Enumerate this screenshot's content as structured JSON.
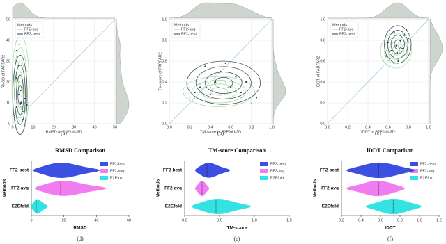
{
  "chart_data": [
    {
      "type": "scatter",
      "caption": "(a)",
      "x_label": "RMSD of E2Efold-3D",
      "y_label": "RMSD of FARFAR2",
      "legend_title": "Methods",
      "grid": true,
      "xlim": [
        0,
        50
      ],
      "ylim": [
        0,
        50
      ],
      "xticks": [
        0,
        10,
        20,
        30,
        40,
        50
      ],
      "yticks": [
        0,
        10,
        20,
        30,
        40,
        50
      ],
      "series": [
        {
          "name": "FF2-avg",
          "color": "#9fd89a",
          "x": [
            1,
            2,
            3,
            2,
            4,
            5,
            3,
            6,
            7,
            2,
            4,
            8
          ],
          "values": [
            5,
            12,
            20,
            30,
            8,
            15,
            38,
            10,
            25,
            40,
            3,
            18
          ]
        },
        {
          "name": "FF2-best",
          "color": "#2f3e50",
          "x": [
            1,
            2,
            3,
            4,
            5,
            2,
            6,
            3,
            7,
            4,
            5,
            2
          ],
          "values": [
            4,
            8,
            14,
            10,
            6,
            22,
            12,
            28,
            9,
            16,
            2,
            35
          ]
        }
      ]
    },
    {
      "type": "scatter",
      "caption": "(b)",
      "x_label": "TM-score of E2Efold-3D",
      "y_label": "TM-score of FARFAR2",
      "legend_title": "Methods",
      "grid": true,
      "xlim": [
        0,
        1
      ],
      "ylim": [
        0,
        1
      ],
      "xticks": [
        {
          "value": 0,
          "label": "0.0"
        },
        0.2,
        0.4,
        0.6,
        0.8,
        {
          "value": 1,
          "label": "1.0"
        }
      ],
      "yticks": [
        {
          "value": 0,
          "label": "0.0"
        },
        0.2,
        0.4,
        0.6,
        0.8,
        {
          "value": 1,
          "label": "1.0"
        }
      ],
      "series": [
        {
          "name": "FF2-avg",
          "color": "#9fd89a",
          "x": [
            0.2,
            0.3,
            0.35,
            0.4,
            0.5,
            0.55,
            0.6,
            0.7,
            0.8,
            0.45,
            0.3,
            0.65
          ],
          "values": [
            0.25,
            0.3,
            0.22,
            0.35,
            0.28,
            0.4,
            0.3,
            0.25,
            0.2,
            0.45,
            0.38,
            0.32
          ]
        },
        {
          "name": "FF2-best",
          "color": "#2f3e50",
          "x": [
            0.25,
            0.3,
            0.4,
            0.45,
            0.5,
            0.6,
            0.65,
            0.7,
            0.85,
            0.35,
            0.55,
            0.75
          ],
          "values": [
            0.3,
            0.35,
            0.28,
            0.4,
            0.5,
            0.35,
            0.45,
            0.3,
            0.25,
            0.55,
            0.58,
            0.4
          ]
        }
      ]
    },
    {
      "type": "scatter",
      "caption": "(c)",
      "x_label": "lDDT of E2Efold-3D",
      "y_label": "lDDT of FARFAR2",
      "legend_title": "Methods",
      "grid": true,
      "xlim": [
        0,
        1
      ],
      "ylim": [
        0,
        1
      ],
      "xticks": [
        {
          "value": 0,
          "label": "0.0"
        },
        0.2,
        0.4,
        0.6,
        0.8,
        {
          "value": 1,
          "label": "1.0"
        }
      ],
      "yticks": [
        {
          "value": 0,
          "label": "0.0"
        },
        0.2,
        0.4,
        0.6,
        0.8,
        {
          "value": 1,
          "label": "1.0"
        }
      ],
      "series": [
        {
          "name": "FF2-avg",
          "color": "#9fd89a",
          "x": [
            0.55,
            0.6,
            0.65,
            0.7,
            0.72,
            0.75,
            0.8,
            0.62,
            0.68,
            0.78,
            0.58,
            0.7
          ],
          "values": [
            0.6,
            0.65,
            0.7,
            0.75,
            0.8,
            0.72,
            0.78,
            0.55,
            0.85,
            0.68,
            0.7,
            0.62
          ]
        },
        {
          "name": "FF2-best",
          "color": "#2f3e50",
          "x": [
            0.58,
            0.63,
            0.68,
            0.72,
            0.76,
            0.8,
            0.66,
            0.7,
            0.74,
            0.6,
            0.78,
            0.69
          ],
          "values": [
            0.65,
            0.7,
            0.75,
            0.8,
            0.85,
            0.82,
            0.88,
            0.6,
            0.72,
            0.78,
            0.9,
            0.68
          ]
        }
      ]
    },
    {
      "type": "violin",
      "title": "RMSD Comparison",
      "caption": "(d)",
      "x_label": "RMSD",
      "y_label": "Methods",
      "xlim": [
        0,
        60
      ],
      "xticks": [
        0,
        20,
        40,
        60
      ],
      "categories": [
        "E2Efold",
        "FF2-avg",
        "FF2-best"
      ],
      "colors": [
        "#33e3e3",
        "#f07cf0",
        "#3b4fe0"
      ],
      "min": [
        0,
        2,
        1
      ],
      "median": [
        3,
        18,
        17
      ],
      "max": [
        10,
        46,
        42
      ]
    },
    {
      "type": "violin",
      "title": "TM-score Comparison",
      "caption": "(e)",
      "x_label": "TM-score",
      "y_label": "Methods",
      "xlim": [
        0,
        1.5
      ],
      "xticks": [
        {
          "value": 0,
          "label": "0.0"
        },
        0.5,
        {
          "value": 1,
          "label": "1.0"
        },
        1.5
      ],
      "categories": [
        "E2Efold",
        "FF2-avg",
        "FF2-best"
      ],
      "colors": [
        "#33e3e3",
        "#f07cf0",
        "#3b4fe0"
      ],
      "min": [
        0.1,
        0.15,
        0.15
      ],
      "median": [
        0.45,
        0.25,
        0.32
      ],
      "max": [
        0.95,
        0.35,
        0.65
      ]
    },
    {
      "type": "violin",
      "title": "lDDT Comparison",
      "caption": "(f)",
      "x_label": "lDDT",
      "y_label": "Methods",
      "xlim": [
        0.2,
        1.2
      ],
      "xticks": [
        0.2,
        0.4,
        0.6,
        0.8,
        {
          "value": 1,
          "label": "1.0"
        },
        1.2
      ],
      "categories": [
        "E2Efold",
        "FF2-avg",
        "FF2-best"
      ],
      "colors": [
        "#33e3e3",
        "#f07cf0",
        "#3b4fe0"
      ],
      "min": [
        0.45,
        0.25,
        0.25
      ],
      "median": [
        0.73,
        0.58,
        0.58
      ],
      "max": [
        1.02,
        0.85,
        0.95
      ]
    }
  ]
}
